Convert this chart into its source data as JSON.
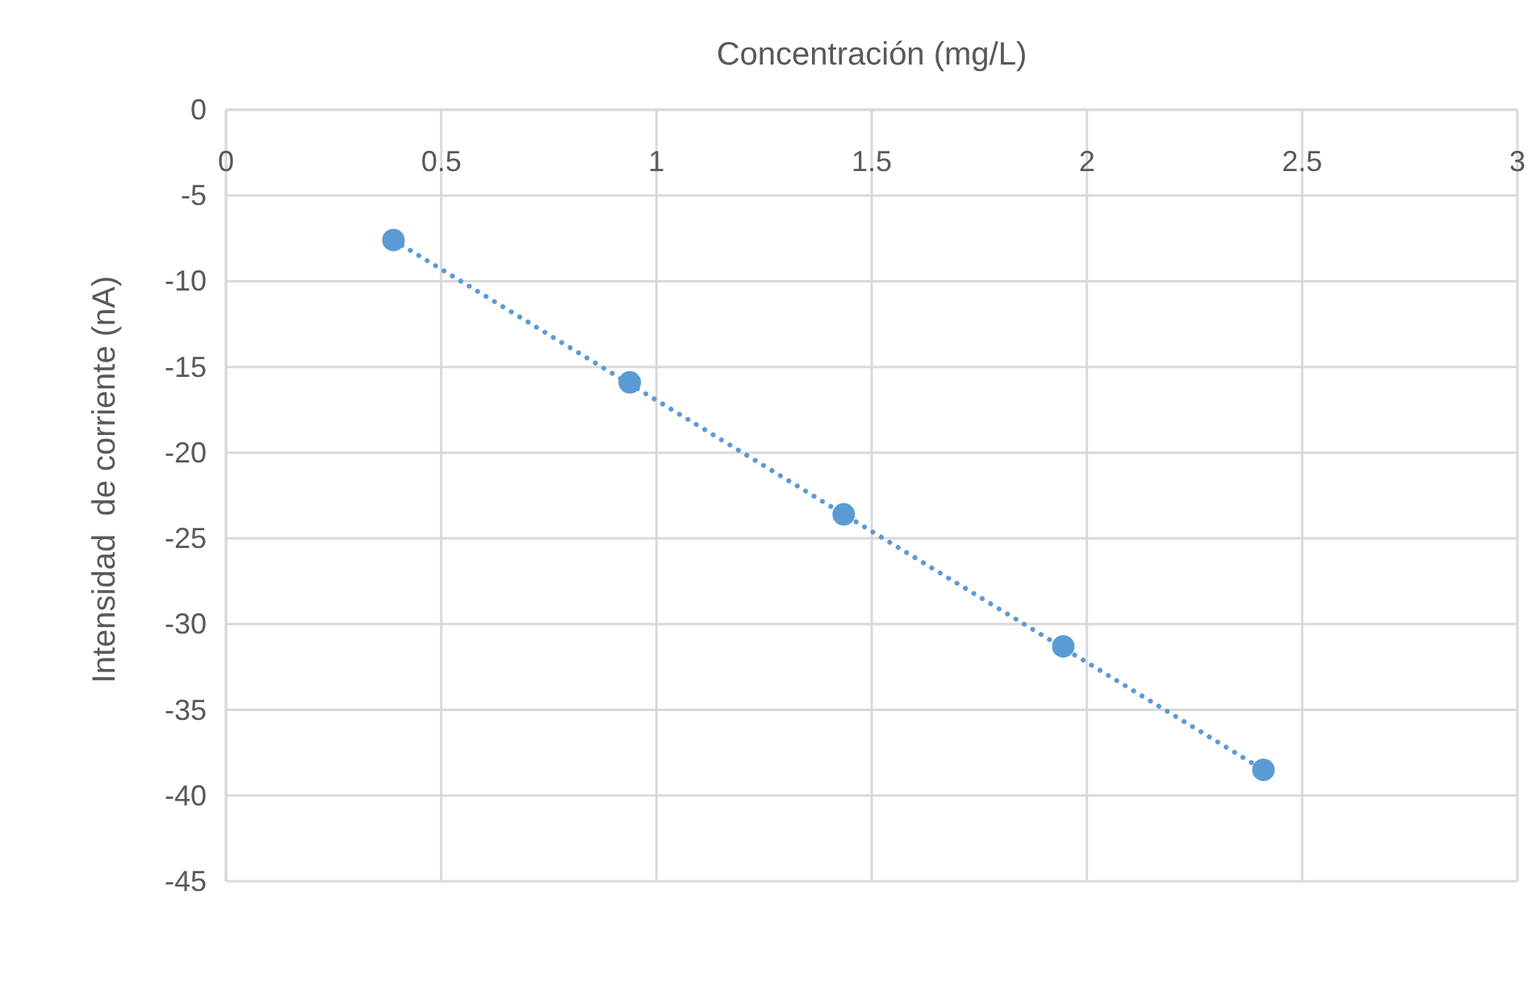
{
  "chart_data": {
    "type": "scatter",
    "xlabel": "Concentración (mg/L)",
    "ylabel": "Intensidad  de corriente (nA)",
    "x": [
      0.389,
      0.938,
      1.435,
      1.945,
      2.41
    ],
    "series": [
      {
        "color": "#5b9bd5",
        "marker": "circle",
        "values": [
          -7.6,
          -15.9,
          -23.6,
          -31.3,
          -38.5
        ]
      },
      {
        "type": "line",
        "color": "#5b9bd5",
        "line_style": "dotted",
        "marker": "none",
        "x": [
          0.389,
          2.41
        ],
        "values": [
          -7.6,
          -38.5
        ]
      }
    ],
    "xlim": [
      0,
      3
    ],
    "xticks": [
      0,
      0.5,
      1,
      1.5,
      2,
      2.5,
      3
    ],
    "ylim": [
      -45,
      0
    ],
    "yticks": [
      0,
      -5,
      -10,
      -15,
      -20,
      -25,
      -30,
      -35,
      -40,
      -45
    ],
    "grid": true
  }
}
